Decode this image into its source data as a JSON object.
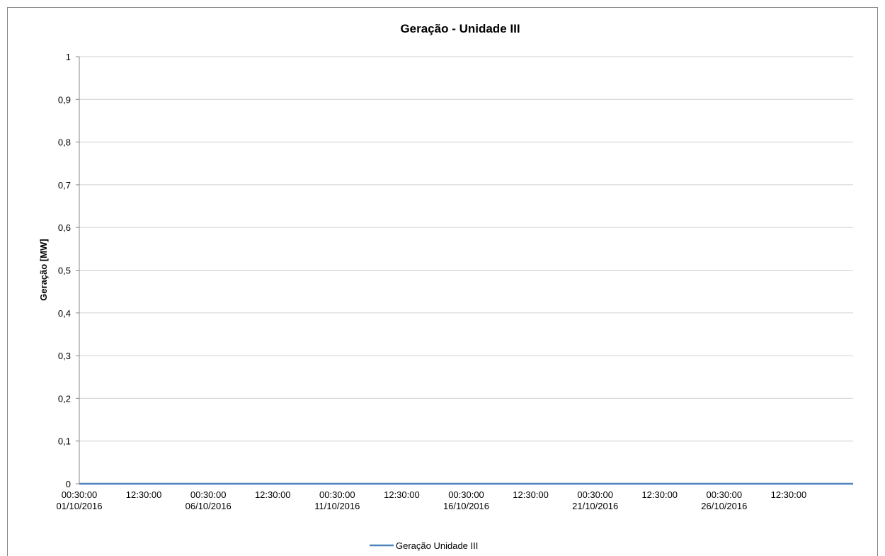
{
  "chart_data": {
    "type": "line",
    "title": "Geração - Unidade III",
    "y_label": "Geração [MW]",
    "categories": [
      "00:30:00\n01/10/2016",
      "12:30:00",
      "00:30:00\n06/10/2016",
      "12:30:00",
      "00:30:00\n11/10/2016",
      "12:30:00",
      "00:30:00\n16/10/2016",
      "12:30:00",
      "00:30:00\n21/10/2016",
      "12:30:00",
      "00:30:00\n26/10/2016",
      "12:30:00",
      null
    ],
    "series": [
      {
        "name": "Geração Unidade III",
        "color": "#4f81bd",
        "values": [
          0,
          0,
          0,
          0,
          0,
          0,
          0,
          0,
          0,
          0,
          0,
          0,
          0
        ]
      }
    ],
    "ylim": [
      0,
      1
    ],
    "yticks": [
      0,
      {
        "value": 0.1,
        "label": "0,1"
      },
      {
        "value": 0.2,
        "label": "0,2"
      },
      {
        "value": 0.3,
        "label": "0,3"
      },
      {
        "value": 0.4,
        "label": "0,4"
      },
      {
        "value": 0.5,
        "label": "0,5"
      },
      {
        "value": 0.6,
        "label": "0,6"
      },
      {
        "value": 0.7,
        "label": "0,7"
      },
      {
        "value": 0.8,
        "label": "0,8"
      },
      {
        "value": 0.9,
        "label": "0,9"
      },
      1
    ],
    "grid": true,
    "legend": "bottom"
  }
}
